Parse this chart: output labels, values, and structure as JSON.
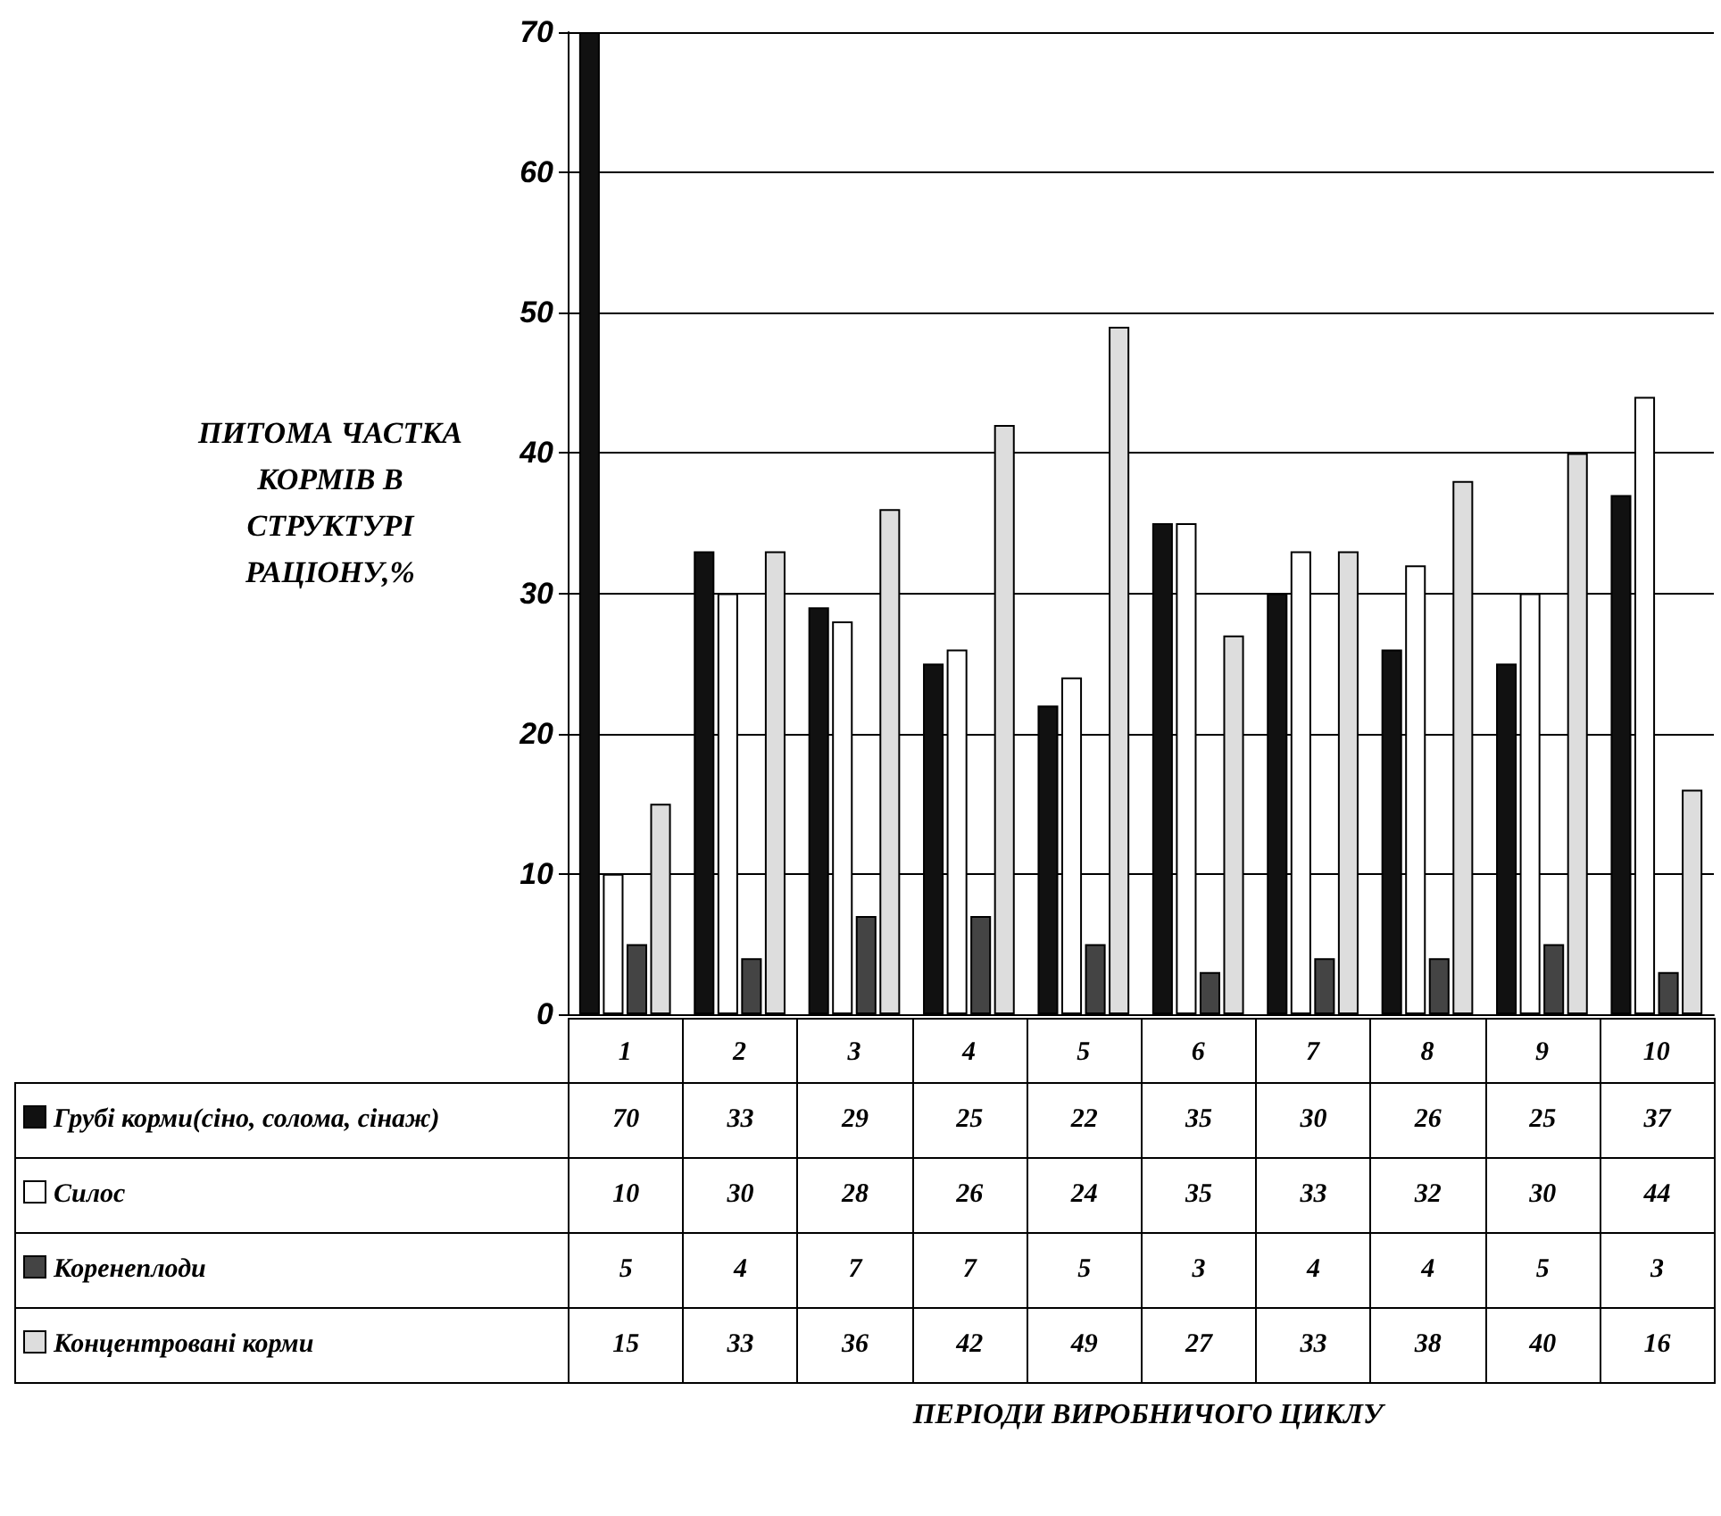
{
  "chart_data": {
    "type": "bar",
    "ylabel": "ПИТОМА ЧАСТКА КОРМІВ В СТРУКТУРІ РАЦІОНУ,%",
    "annotations": [
      "ПЕРІОДИ ВИРОБНИЧОГО ЦИКЛУ"
    ],
    "categories": [
      "1",
      "2",
      "3",
      "4",
      "5",
      "6",
      "7",
      "8",
      "9",
      "10"
    ],
    "series": [
      {
        "name": "Грубі корми(сіно, солома, сінаж)",
        "color": "#111111",
        "values": [
          70,
          33,
          29,
          25,
          22,
          35,
          30,
          26,
          25,
          37
        ]
      },
      {
        "name": "Силос",
        "color": "#ffffff",
        "values": [
          10,
          30,
          28,
          26,
          24,
          35,
          33,
          32,
          30,
          44
        ]
      },
      {
        "name": "Коренеплоди",
        "color": "#444444",
        "values": [
          5,
          4,
          7,
          7,
          5,
          3,
          4,
          4,
          5,
          3
        ]
      },
      {
        "name": "Концентровані корми",
        "color": "#dddddd",
        "values": [
          15,
          33,
          36,
          42,
          49,
          27,
          33,
          38,
          40,
          16
        ]
      }
    ],
    "ylim": [
      0,
      70
    ],
    "yticks": [
      0,
      10,
      20,
      30,
      40,
      50,
      60,
      70
    ],
    "grid": "y",
    "legend": "bottom",
    "data_labels": true
  }
}
